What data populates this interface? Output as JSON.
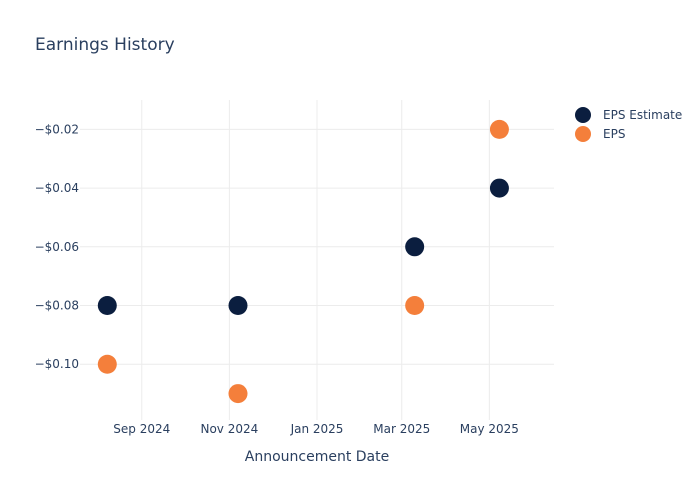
{
  "chart_data": {
    "type": "scatter",
    "title": "Earnings History",
    "xlabel": "Announcement Date",
    "ylabel": "",
    "x_ticks": [
      "Sep 2024",
      "Nov 2024",
      "Jan 2025",
      "Mar 2025",
      "May 2025"
    ],
    "y_ticks": [
      "−$0.02",
      "−$0.04",
      "−$0.06",
      "−$0.08",
      "−$0.10"
    ],
    "y_tick_values": [
      -0.02,
      -0.04,
      -0.06,
      -0.08,
      -0.1
    ],
    "xlim": [
      "2024-07-20",
      "2025-06-15"
    ],
    "ylim": [
      -0.119,
      -0.01
    ],
    "grid": true,
    "legend_position": "top-right",
    "dates": [
      "2024-08-08",
      "2024-11-07",
      "2025-03-10",
      "2025-05-08"
    ],
    "series": [
      {
        "name": "EPS Estimate",
        "color": "#0b1e3f",
        "values": [
          -0.08,
          -0.08,
          -0.06,
          -0.04
        ]
      },
      {
        "name": "EPS",
        "color": "#f47f3b",
        "values": [
          -0.1,
          -0.11,
          -0.08,
          -0.02
        ]
      }
    ]
  }
}
